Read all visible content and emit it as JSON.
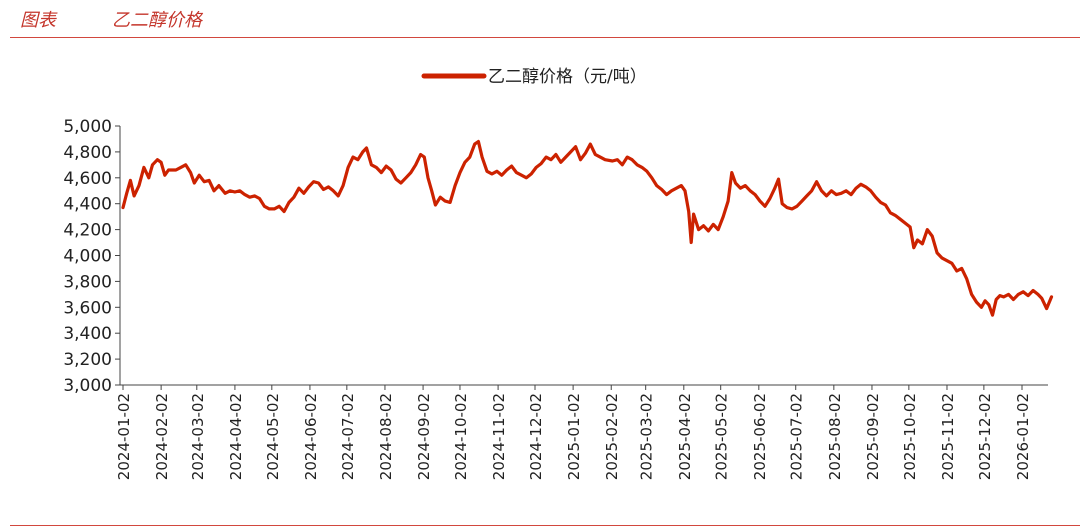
{
  "header": {
    "label": "图表",
    "title": "乙二醇价格"
  },
  "colors": {
    "accent": "#c4352b",
    "series": "#cc2200",
    "axis": "#444444"
  },
  "chart_data": {
    "type": "line",
    "title": "",
    "xlabel": "",
    "ylabel": "",
    "ylim": [
      3000,
      5000
    ],
    "y_ticks": [
      3000,
      3200,
      3400,
      3600,
      3800,
      4000,
      4200,
      4400,
      4600,
      4800,
      5000
    ],
    "y_tick_labels": [
      "3,000",
      "3,200",
      "3,400",
      "3,600",
      "3,800",
      "4,000",
      "4,200",
      "4,400",
      "4,600",
      "4,800",
      "5,000"
    ],
    "x_range": [
      "2024-01-02",
      "2026-01-26"
    ],
    "x_tick_labels": [
      "2024-01-02",
      "2024-02-02",
      "2024-03-02",
      "2024-04-02",
      "2024-05-02",
      "2024-06-02",
      "2024-07-02",
      "2024-08-02",
      "2024-09-02",
      "2024-10-02",
      "2024-11-02",
      "2024-12-02",
      "2025-01-02",
      "2025-02-02",
      "2025-03-02",
      "2025-04-02",
      "2025-05-02",
      "2025-06-02",
      "2025-07-02",
      "2025-08-02",
      "2025-09-02",
      "2025-10-02",
      "2025-11-02",
      "2025-12-02",
      "2026-01-02"
    ],
    "grid": false,
    "legend": "top-center",
    "series": [
      {
        "name": "乙二醇价格（元/吨）",
        "points": [
          [
            "2024-01-02",
            4370
          ],
          [
            "2024-01-05",
            4480
          ],
          [
            "2024-01-08",
            4580
          ],
          [
            "2024-01-11",
            4460
          ],
          [
            "2024-01-15",
            4540
          ],
          [
            "2024-01-19",
            4680
          ],
          [
            "2024-01-23",
            4600
          ],
          [
            "2024-01-26",
            4700
          ],
          [
            "2024-01-30",
            4740
          ],
          [
            "2024-02-02",
            4720
          ],
          [
            "2024-02-05",
            4620
          ],
          [
            "2024-02-08",
            4660
          ],
          [
            "2024-02-14",
            4660
          ],
          [
            "2024-02-18",
            4680
          ],
          [
            "2024-02-22",
            4700
          ],
          [
            "2024-02-26",
            4640
          ],
          [
            "2024-02-29",
            4560
          ],
          [
            "2024-03-04",
            4620
          ],
          [
            "2024-03-08",
            4570
          ],
          [
            "2024-03-12",
            4580
          ],
          [
            "2024-03-16",
            4500
          ],
          [
            "2024-03-20",
            4540
          ],
          [
            "2024-03-25",
            4480
          ],
          [
            "2024-03-29",
            4500
          ],
          [
            "2024-04-02",
            4490
          ],
          [
            "2024-04-06",
            4500
          ],
          [
            "2024-04-10",
            4470
          ],
          [
            "2024-04-14",
            4450
          ],
          [
            "2024-04-18",
            4460
          ],
          [
            "2024-04-22",
            4440
          ],
          [
            "2024-04-26",
            4380
          ],
          [
            "2024-04-30",
            4360
          ],
          [
            "2024-05-04",
            4360
          ],
          [
            "2024-05-08",
            4380
          ],
          [
            "2024-05-12",
            4340
          ],
          [
            "2024-05-16",
            4410
          ],
          [
            "2024-05-20",
            4450
          ],
          [
            "2024-05-24",
            4520
          ],
          [
            "2024-05-28",
            4480
          ],
          [
            "2024-06-01",
            4530
          ],
          [
            "2024-06-05",
            4570
          ],
          [
            "2024-06-09",
            4560
          ],
          [
            "2024-06-13",
            4510
          ],
          [
            "2024-06-17",
            4530
          ],
          [
            "2024-06-21",
            4500
          ],
          [
            "2024-06-25",
            4460
          ],
          [
            "2024-06-29",
            4540
          ],
          [
            "2024-07-03",
            4680
          ],
          [
            "2024-07-07",
            4760
          ],
          [
            "2024-07-11",
            4740
          ],
          [
            "2024-07-15",
            4800
          ],
          [
            "2024-07-18",
            4830
          ],
          [
            "2024-07-22",
            4700
          ],
          [
            "2024-07-26",
            4680
          ],
          [
            "2024-07-30",
            4640
          ],
          [
            "2024-08-03",
            4690
          ],
          [
            "2024-08-07",
            4660
          ],
          [
            "2024-08-11",
            4590
          ],
          [
            "2024-08-15",
            4560
          ],
          [
            "2024-08-19",
            4600
          ],
          [
            "2024-08-23",
            4640
          ],
          [
            "2024-08-27",
            4700
          ],
          [
            "2024-08-31",
            4780
          ],
          [
            "2024-09-03",
            4760
          ],
          [
            "2024-09-06",
            4600
          ],
          [
            "2024-09-09",
            4500
          ],
          [
            "2024-09-12",
            4390
          ],
          [
            "2024-09-16",
            4450
          ],
          [
            "2024-09-20",
            4420
          ],
          [
            "2024-09-24",
            4410
          ],
          [
            "2024-09-28",
            4540
          ],
          [
            "2024-10-02",
            4640
          ],
          [
            "2024-10-06",
            4720
          ],
          [
            "2024-10-10",
            4760
          ],
          [
            "2024-10-14",
            4860
          ],
          [
            "2024-10-17",
            4880
          ],
          [
            "2024-10-20",
            4760
          ],
          [
            "2024-10-24",
            4650
          ],
          [
            "2024-10-28",
            4630
          ],
          [
            "2024-11-01",
            4650
          ],
          [
            "2024-11-05",
            4620
          ],
          [
            "2024-11-09",
            4660
          ],
          [
            "2024-11-13",
            4690
          ],
          [
            "2024-11-17",
            4640
          ],
          [
            "2024-11-21",
            4620
          ],
          [
            "2024-11-25",
            4600
          ],
          [
            "2024-11-29",
            4630
          ],
          [
            "2024-12-03",
            4680
          ],
          [
            "2024-12-07",
            4710
          ],
          [
            "2024-12-11",
            4760
          ],
          [
            "2024-12-15",
            4740
          ],
          [
            "2024-12-19",
            4780
          ],
          [
            "2024-12-23",
            4720
          ],
          [
            "2024-12-27",
            4760
          ],
          [
            "2024-12-31",
            4800
          ],
          [
            "2025-01-04",
            4840
          ],
          [
            "2025-01-08",
            4740
          ],
          [
            "2025-01-12",
            4790
          ],
          [
            "2025-01-16",
            4860
          ],
          [
            "2025-01-20",
            4780
          ],
          [
            "2025-01-24",
            4760
          ],
          [
            "2025-01-28",
            4740
          ],
          [
            "2025-02-03",
            4730
          ],
          [
            "2025-02-07",
            4740
          ],
          [
            "2025-02-11",
            4700
          ],
          [
            "2025-02-15",
            4760
          ],
          [
            "2025-02-19",
            4740
          ],
          [
            "2025-02-23",
            4700
          ],
          [
            "2025-02-27",
            4680
          ],
          [
            "2025-03-03",
            4650
          ],
          [
            "2025-03-07",
            4600
          ],
          [
            "2025-03-11",
            4540
          ],
          [
            "2025-03-15",
            4510
          ],
          [
            "2025-03-19",
            4470
          ],
          [
            "2025-03-23",
            4500
          ],
          [
            "2025-03-27",
            4520
          ],
          [
            "2025-03-31",
            4540
          ],
          [
            "2025-04-03",
            4500
          ],
          [
            "2025-04-06",
            4340
          ],
          [
            "2025-04-08",
            4100
          ],
          [
            "2025-04-10",
            4320
          ],
          [
            "2025-04-14",
            4200
          ],
          [
            "2025-04-18",
            4230
          ],
          [
            "2025-04-22",
            4190
          ],
          [
            "2025-04-26",
            4240
          ],
          [
            "2025-04-30",
            4200
          ],
          [
            "2025-05-04",
            4300
          ],
          [
            "2025-05-08",
            4420
          ],
          [
            "2025-05-11",
            4640
          ],
          [
            "2025-05-14",
            4560
          ],
          [
            "2025-05-18",
            4520
          ],
          [
            "2025-05-22",
            4540
          ],
          [
            "2025-05-26",
            4500
          ],
          [
            "2025-05-30",
            4470
          ],
          [
            "2025-06-03",
            4420
          ],
          [
            "2025-06-07",
            4380
          ],
          [
            "2025-06-11",
            4440
          ],
          [
            "2025-06-15",
            4520
          ],
          [
            "2025-06-18",
            4590
          ],
          [
            "2025-06-21",
            4400
          ],
          [
            "2025-06-25",
            4370
          ],
          [
            "2025-06-29",
            4360
          ],
          [
            "2025-07-03",
            4380
          ],
          [
            "2025-07-07",
            4420
          ],
          [
            "2025-07-11",
            4460
          ],
          [
            "2025-07-15",
            4500
          ],
          [
            "2025-07-19",
            4570
          ],
          [
            "2025-07-23",
            4500
          ],
          [
            "2025-07-27",
            4460
          ],
          [
            "2025-07-31",
            4500
          ],
          [
            "2025-08-04",
            4470
          ],
          [
            "2025-08-08",
            4480
          ],
          [
            "2025-08-12",
            4500
          ],
          [
            "2025-08-16",
            4470
          ],
          [
            "2025-08-20",
            4520
          ],
          [
            "2025-08-24",
            4550
          ],
          [
            "2025-08-28",
            4530
          ],
          [
            "2025-09-01",
            4500
          ],
          [
            "2025-09-05",
            4450
          ],
          [
            "2025-09-09",
            4410
          ],
          [
            "2025-09-13",
            4390
          ],
          [
            "2025-09-17",
            4330
          ],
          [
            "2025-09-21",
            4310
          ],
          [
            "2025-09-25",
            4280
          ],
          [
            "2025-09-29",
            4250
          ],
          [
            "2025-10-03",
            4220
          ],
          [
            "2025-10-06",
            4060
          ],
          [
            "2025-10-09",
            4120
          ],
          [
            "2025-10-13",
            4090
          ],
          [
            "2025-10-17",
            4200
          ],
          [
            "2025-10-21",
            4150
          ],
          [
            "2025-10-25",
            4020
          ],
          [
            "2025-10-29",
            3980
          ],
          [
            "2025-11-02",
            3960
          ],
          [
            "2025-11-06",
            3940
          ],
          [
            "2025-11-10",
            3880
          ],
          [
            "2025-11-14",
            3900
          ],
          [
            "2025-11-18",
            3820
          ],
          [
            "2025-11-22",
            3700
          ],
          [
            "2025-11-26",
            3640
          ],
          [
            "2025-11-30",
            3600
          ],
          [
            "2025-12-03",
            3650
          ],
          [
            "2025-12-06",
            3620
          ],
          [
            "2025-12-09",
            3540
          ],
          [
            "2025-12-12",
            3660
          ],
          [
            "2025-12-15",
            3690
          ],
          [
            "2025-12-18",
            3680
          ],
          [
            "2025-12-22",
            3700
          ],
          [
            "2025-12-26",
            3660
          ],
          [
            "2025-12-30",
            3700
          ],
          [
            "2026-01-03",
            3720
          ],
          [
            "2026-01-07",
            3690
          ],
          [
            "2026-01-11",
            3730
          ],
          [
            "2026-01-15",
            3700
          ],
          [
            "2026-01-18",
            3670
          ],
          [
            "2026-01-22",
            3590
          ],
          [
            "2026-01-26",
            3680
          ]
        ]
      }
    ]
  }
}
